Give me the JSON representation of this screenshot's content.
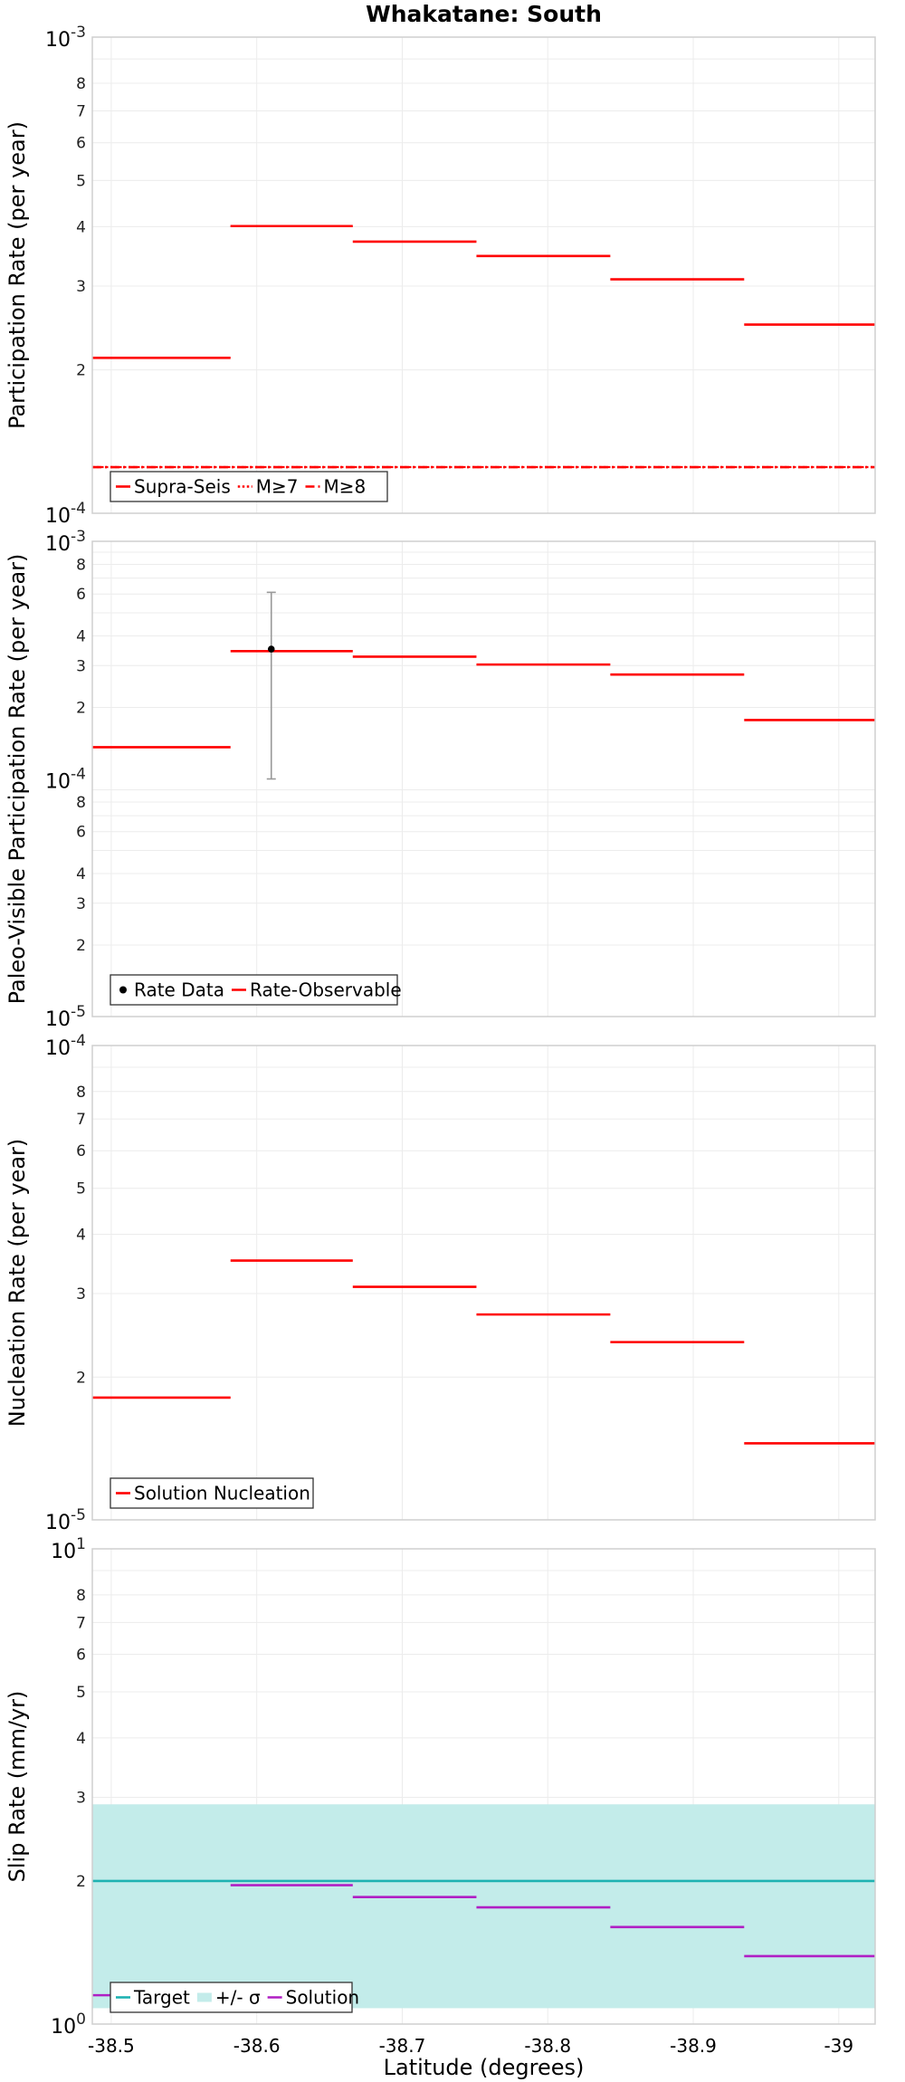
{
  "chart_data": [
    {
      "type": "line",
      "title": "Whakatane: South",
      "ylabel": "Participation Rate (per year)",
      "xlabel": "",
      "x_scale": "linear",
      "y_scale": "log",
      "xlim": [
        -38.487,
        -39.025
      ],
      "ylim": [
        0.0001,
        0.001
      ],
      "x_ticks": [
        "-38.5",
        "-38.6",
        "-38.7",
        "-38.8",
        "-38.9",
        "-39"
      ],
      "y_major_ticks": [
        {
          "base": "10",
          "exp": "-4"
        },
        {
          "base": "10",
          "exp": "-3"
        }
      ],
      "y_minor_ticks": [
        "2",
        "3",
        "4",
        "5",
        "6",
        "7",
        "8"
      ],
      "grid": true,
      "legend_position": "bottom-left",
      "legend": [
        "Supra-Seis",
        "M≥7",
        "M≥8"
      ],
      "series": [
        {
          "name": "Supra-Seis",
          "style": "solid",
          "color": "#ff0000",
          "segments": [
            {
              "x": [
                -38.487,
                -38.582
              ],
              "y": 0.000212
            },
            {
              "x": [
                -38.582,
                -38.666
              ],
              "y": 0.000401
            },
            {
              "x": [
                -38.666,
                -38.751
              ],
              "y": 0.000372
            },
            {
              "x": [
                -38.751,
                -38.843
              ],
              "y": 0.000347
            },
            {
              "x": [
                -38.843,
                -38.935
              ],
              "y": 0.00031
            },
            {
              "x": [
                -38.935,
                -39.025
              ],
              "y": 0.000249
            }
          ]
        },
        {
          "name": "M≥7",
          "style": "dotted",
          "color": "#ff0000",
          "segments": [
            {
              "x": [
                -38.582,
                -38.666
              ],
              "y": 0.000401
            },
            {
              "x": [
                -38.487,
                -39.025
              ],
              "y": 0.000125
            }
          ]
        },
        {
          "name": "M≥8",
          "style": "dashdot",
          "color": "#ff0000",
          "segments": [
            {
              "x": [
                -38.487,
                -39.025
              ],
              "y": 0.000125
            }
          ]
        }
      ]
    },
    {
      "type": "line",
      "title": "",
      "ylabel": "Paleo-Visible Participation Rate (per year)",
      "xlabel": "",
      "x_scale": "linear",
      "y_scale": "log",
      "xlim": [
        -38.487,
        -39.025
      ],
      "ylim": [
        1e-05,
        0.001
      ],
      "x_ticks": [
        "-38.5",
        "-38.6",
        "-38.7",
        "-38.8",
        "-38.9",
        "-39"
      ],
      "y_major_ticks": [
        {
          "base": "10",
          "exp": "-5"
        },
        {
          "base": "10",
          "exp": "-4"
        },
        {
          "base": "10",
          "exp": "-3"
        }
      ],
      "y_minor_ticks": [
        "2",
        "3",
        "4",
        "6",
        "8"
      ],
      "grid": true,
      "legend_position": "bottom-left",
      "legend": [
        "Rate Data",
        "Rate-Observable"
      ],
      "points": [
        {
          "name": "Rate Data",
          "x": -38.61,
          "y": 0.000352,
          "y_low": 0.0001,
          "y_high": 0.00061
        }
      ],
      "series": [
        {
          "name": "Rate-Observable",
          "style": "solid",
          "color": "#ff0000",
          "segments": [
            {
              "x": [
                -38.487,
                -38.582
              ],
              "y": 0.000136
            },
            {
              "x": [
                -38.582,
                -38.666
              ],
              "y": 0.000345
            },
            {
              "x": [
                -38.666,
                -38.751
              ],
              "y": 0.000327
            },
            {
              "x": [
                -38.751,
                -38.843
              ],
              "y": 0.000303
            },
            {
              "x": [
                -38.843,
                -38.935
              ],
              "y": 0.000275
            },
            {
              "x": [
                -38.935,
                -39.025
              ],
              "y": 0.000177
            }
          ]
        }
      ]
    },
    {
      "type": "line",
      "title": "",
      "ylabel": "Nucleation Rate (per year)",
      "xlabel": "",
      "x_scale": "linear",
      "y_scale": "log",
      "xlim": [
        -38.487,
        -39.025
      ],
      "ylim": [
        1e-05,
        0.0001
      ],
      "x_ticks": [
        "-38.5",
        "-38.6",
        "-38.7",
        "-38.8",
        "-38.9",
        "-39"
      ],
      "y_major_ticks": [
        {
          "base": "10",
          "exp": "-5"
        },
        {
          "base": "10",
          "exp": "-4"
        }
      ],
      "y_minor_ticks": [
        "2",
        "3",
        "4",
        "5",
        "6",
        "7",
        "8"
      ],
      "grid": true,
      "legend_position": "bottom-left",
      "legend": [
        "Solution Nucleation"
      ],
      "series": [
        {
          "name": "Solution Nucleation",
          "style": "solid",
          "color": "#ff0000",
          "segments": [
            {
              "x": [
                -38.487,
                -38.582
              ],
              "y": 1.81e-05
            },
            {
              "x": [
                -38.582,
                -38.666
              ],
              "y": 3.52e-05
            },
            {
              "x": [
                -38.666,
                -38.751
              ],
              "y": 3.1e-05
            },
            {
              "x": [
                -38.751,
                -38.843
              ],
              "y": 2.71e-05
            },
            {
              "x": [
                -38.843,
                -38.935
              ],
              "y": 2.37e-05
            },
            {
              "x": [
                -38.935,
                -39.025
              ],
              "y": 1.45e-05
            }
          ]
        }
      ]
    },
    {
      "type": "line",
      "title": "",
      "ylabel": "Slip Rate (mm/yr)",
      "xlabel": "Latitude (degrees)",
      "x_scale": "linear",
      "y_scale": "log",
      "xlim": [
        -38.487,
        -39.025
      ],
      "ylim": [
        1,
        10
      ],
      "x_ticks": [
        "-38.5",
        "-38.6",
        "-38.7",
        "-38.8",
        "-38.9",
        "-39"
      ],
      "y_major_ticks": [
        {
          "base": "10",
          "exp": "0"
        },
        {
          "base": "10",
          "exp": "1"
        }
      ],
      "y_minor_ticks": [
        "2",
        "3",
        "4",
        "5",
        "6",
        "7",
        "8"
      ],
      "grid": true,
      "legend_position": "bottom-left",
      "legend": [
        "Target",
        "+/- σ",
        "Solution"
      ],
      "band": {
        "name": "+/- σ",
        "color": "#c3ecea",
        "y_low": 1.08,
        "y_high": 2.9
      },
      "series": [
        {
          "name": "Target",
          "style": "solid",
          "color": "#1fb2b2",
          "segments": [
            {
              "x": [
                -38.487,
                -39.025
              ],
              "y": 2.0
            }
          ]
        },
        {
          "name": "Solution",
          "style": "solid",
          "color": "#b01fc4",
          "segments": [
            {
              "x": [
                -38.487,
                -38.582
              ],
              "y": 1.15
            },
            {
              "x": [
                -38.582,
                -38.666
              ],
              "y": 1.96
            },
            {
              "x": [
                -38.666,
                -38.751
              ],
              "y": 1.85
            },
            {
              "x": [
                -38.751,
                -38.843
              ],
              "y": 1.76
            },
            {
              "x": [
                -38.843,
                -38.935
              ],
              "y": 1.6
            },
            {
              "x": [
                -38.935,
                -39.025
              ],
              "y": 1.39
            }
          ]
        }
      ]
    }
  ]
}
